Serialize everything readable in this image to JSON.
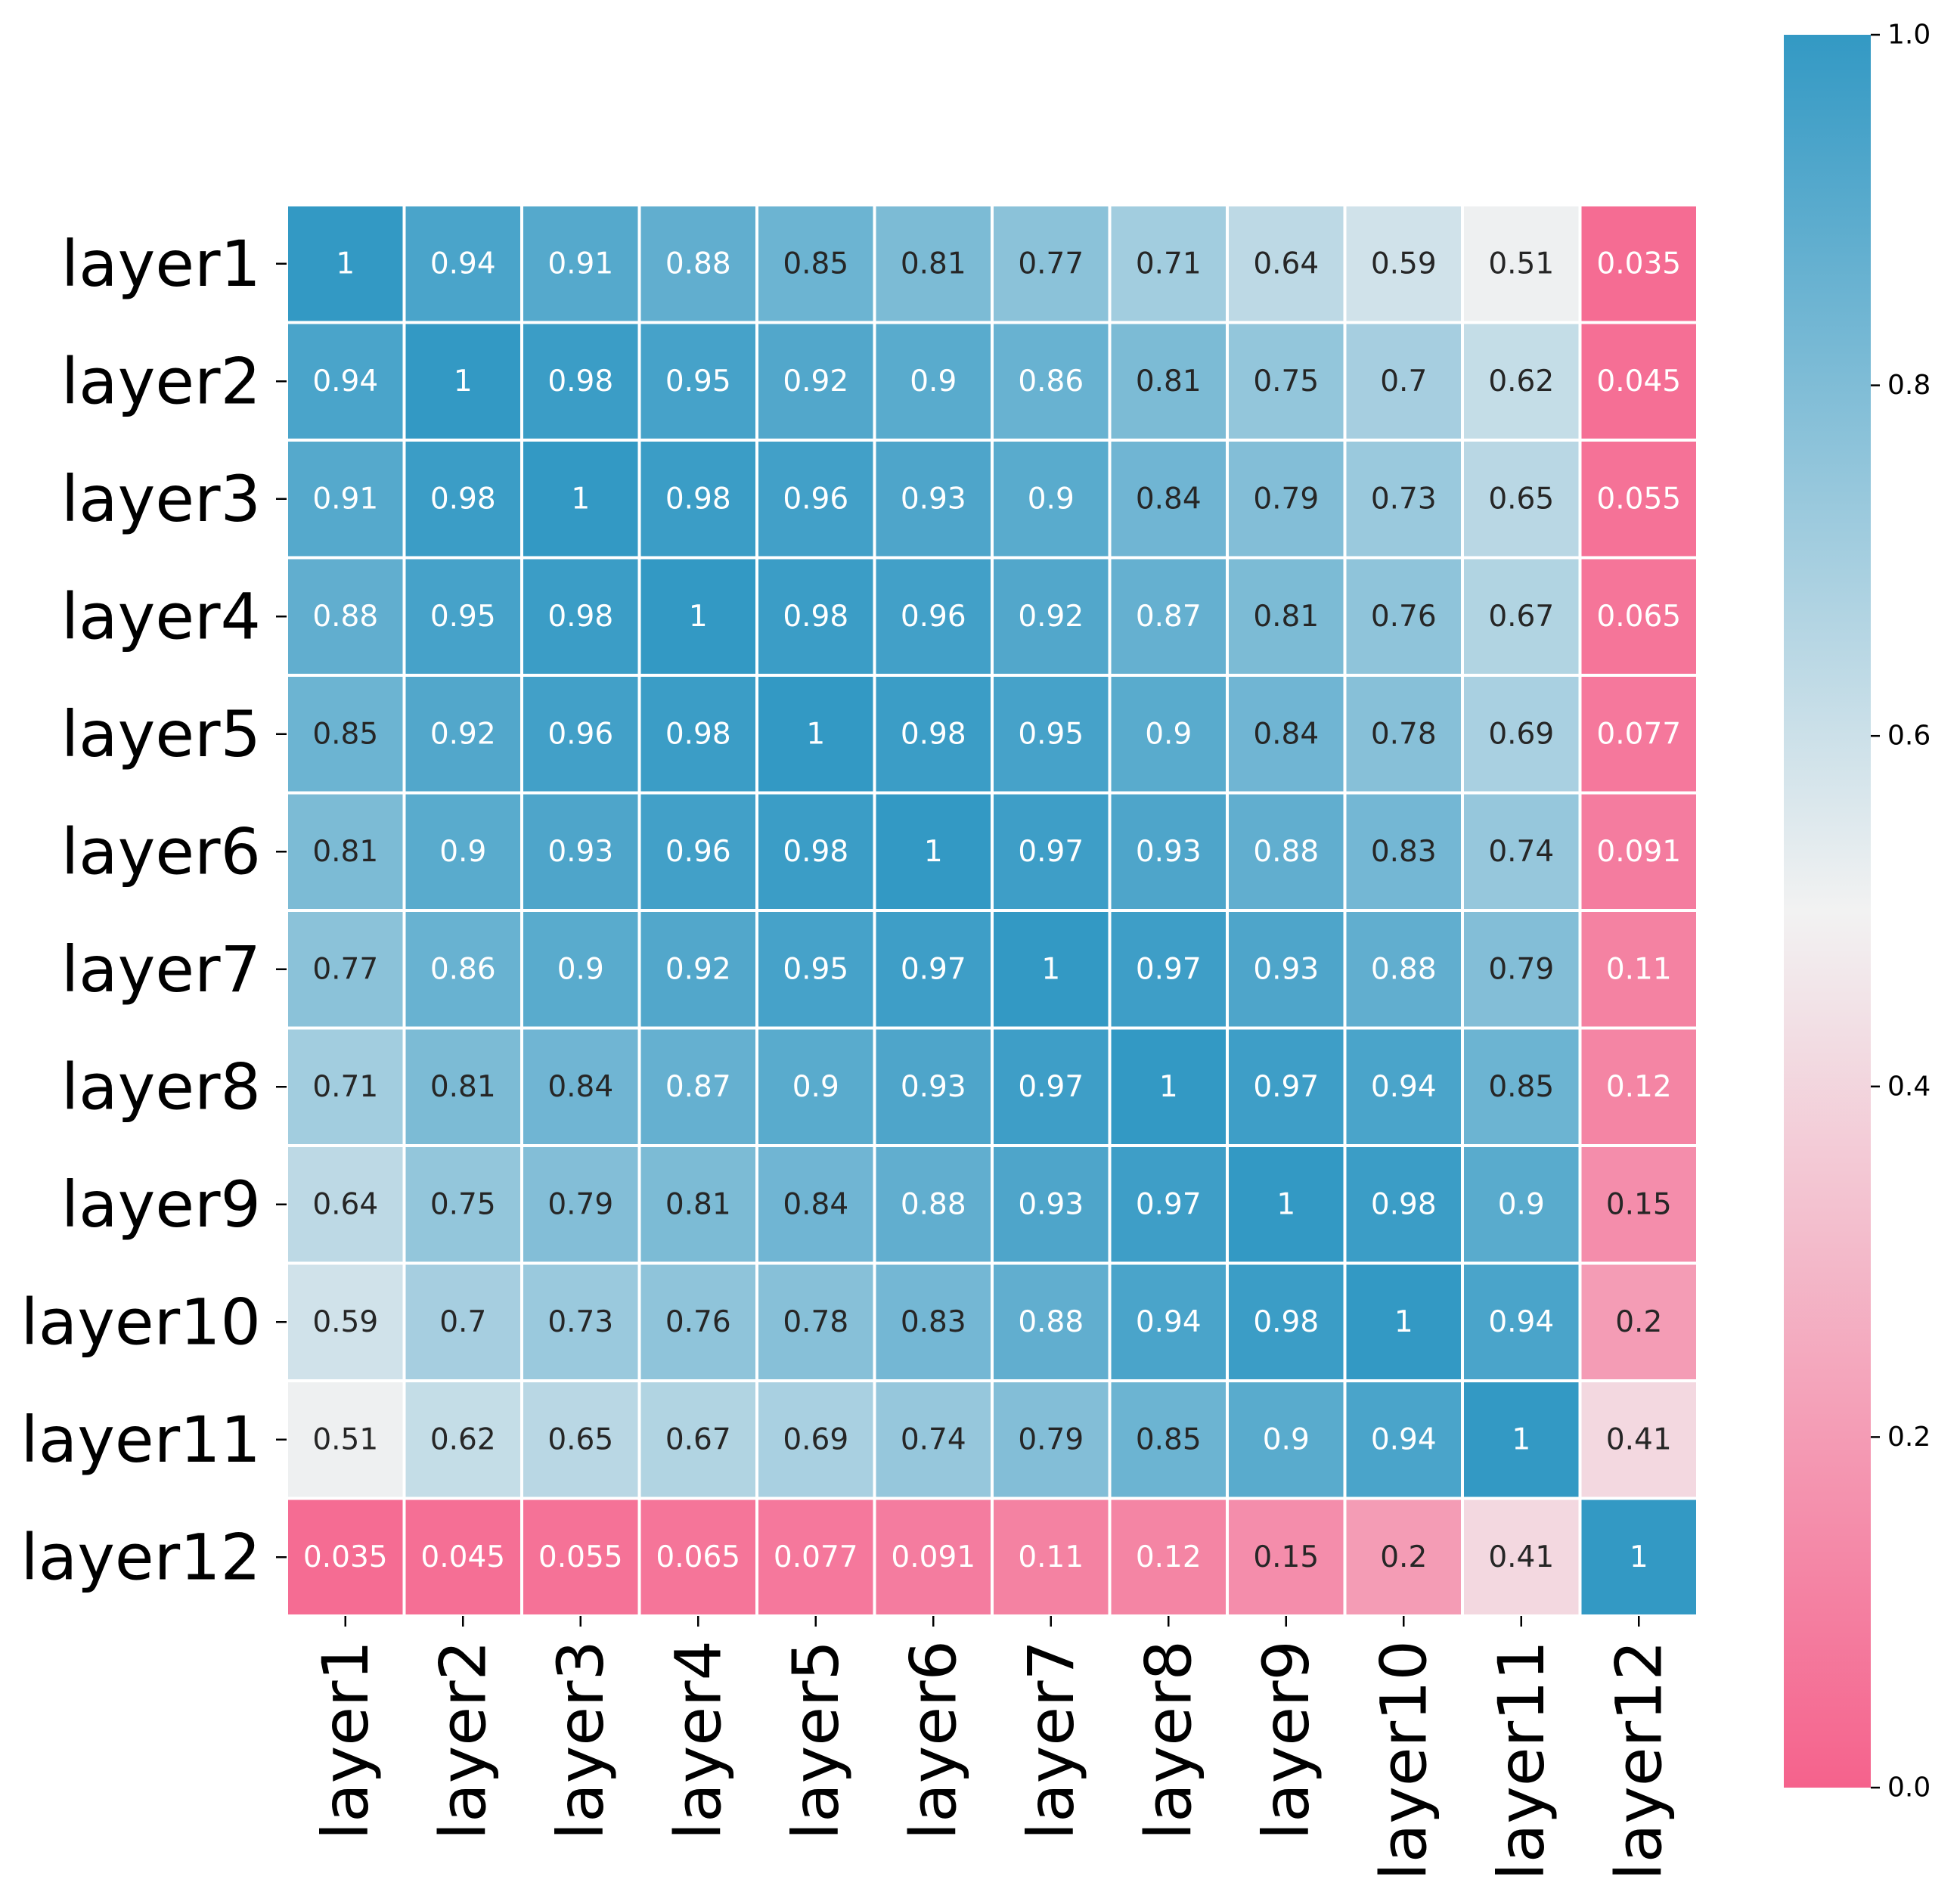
{
  "chart_data": {
    "type": "heatmap",
    "x_categories": [
      "layer1",
      "layer2",
      "layer3",
      "layer4",
      "layer5",
      "layer6",
      "layer7",
      "layer8",
      "layer9",
      "layer10",
      "layer11",
      "layer12"
    ],
    "y_categories": [
      "layer1",
      "layer2",
      "layer3",
      "layer4",
      "layer5",
      "layer6",
      "layer7",
      "layer8",
      "layer9",
      "layer10",
      "layer11",
      "layer12"
    ],
    "values": [
      [
        1,
        0.94,
        0.91,
        0.88,
        0.85,
        0.81,
        0.77,
        0.71,
        0.64,
        0.59,
        0.51,
        0.035
      ],
      [
        0.94,
        1,
        0.98,
        0.95,
        0.92,
        0.9,
        0.86,
        0.81,
        0.75,
        0.7,
        0.62,
        0.045
      ],
      [
        0.91,
        0.98,
        1,
        0.98,
        0.96,
        0.93,
        0.9,
        0.84,
        0.79,
        0.73,
        0.65,
        0.055
      ],
      [
        0.88,
        0.95,
        0.98,
        1,
        0.98,
        0.96,
        0.92,
        0.87,
        0.81,
        0.76,
        0.67,
        0.065
      ],
      [
        0.85,
        0.92,
        0.96,
        0.98,
        1,
        0.98,
        0.95,
        0.9,
        0.84,
        0.78,
        0.69,
        0.077
      ],
      [
        0.81,
        0.9,
        0.93,
        0.96,
        0.98,
        1,
        0.97,
        0.93,
        0.88,
        0.83,
        0.74,
        0.091
      ],
      [
        0.77,
        0.86,
        0.9,
        0.92,
        0.95,
        0.97,
        1,
        0.97,
        0.93,
        0.88,
        0.79,
        0.11
      ],
      [
        0.71,
        0.81,
        0.84,
        0.87,
        0.9,
        0.93,
        0.97,
        1,
        0.97,
        0.94,
        0.85,
        0.12
      ],
      [
        0.64,
        0.75,
        0.79,
        0.81,
        0.84,
        0.88,
        0.93,
        0.97,
        1,
        0.98,
        0.9,
        0.15
      ],
      [
        0.59,
        0.7,
        0.73,
        0.76,
        0.78,
        0.83,
        0.88,
        0.94,
        0.98,
        1,
        0.94,
        0.2
      ],
      [
        0.51,
        0.62,
        0.65,
        0.67,
        0.69,
        0.74,
        0.79,
        0.85,
        0.9,
        0.94,
        1,
        0.41
      ],
      [
        0.035,
        0.045,
        0.055,
        0.065,
        0.077,
        0.091,
        0.11,
        0.12,
        0.15,
        0.2,
        0.41,
        1
      ]
    ],
    "colorbar": {
      "min": 0.0,
      "max": 1.0,
      "ticks": [
        "0.0",
        "0.2",
        "0.4",
        "0.6",
        "0.8",
        "1.0"
      ],
      "colors": {
        "low": "#f5628c",
        "mid": "#f2f2f2",
        "high": "#3399c4"
      }
    },
    "grid": true,
    "title": "",
    "xlabel": "",
    "ylabel": ""
  }
}
